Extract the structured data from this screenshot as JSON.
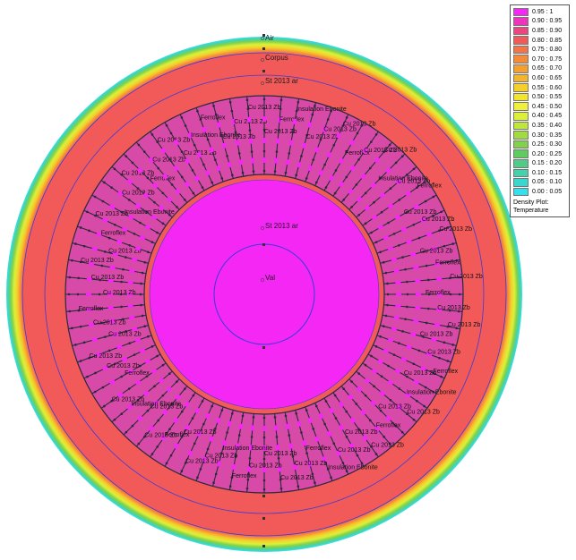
{
  "legend": {
    "ranges": [
      {
        "label": "0.95 : 1",
        "color": "#f527f5"
      },
      {
        "label": "0.90 : 0.95",
        "color": "#f033bf"
      },
      {
        "label": "0.85 : 0.90",
        "color": "#f0447f"
      },
      {
        "label": "0.80 : 0.85",
        "color": "#f25a5a"
      },
      {
        "label": "0.75 : 0.80",
        "color": "#f27448"
      },
      {
        "label": "0.70 : 0.75",
        "color": "#f58a3a"
      },
      {
        "label": "0.65 : 0.70",
        "color": "#f5a02e"
      },
      {
        "label": "0.60 : 0.65",
        "color": "#f5b52a"
      },
      {
        "label": "0.55 : 0.60",
        "color": "#f5cf2a"
      },
      {
        "label": "0.50 : 0.55",
        "color": "#f2e52e"
      },
      {
        "label": "0.45 : 0.50",
        "color": "#f0f038"
      },
      {
        "label": "0.40 : 0.45",
        "color": "#dcf03a"
      },
      {
        "label": "0.35 : 0.40",
        "color": "#bfe63a"
      },
      {
        "label": "0.30 : 0.35",
        "color": "#9fdc3c"
      },
      {
        "label": "0.25 : 0.30",
        "color": "#7fd24a"
      },
      {
        "label": "0.20 : 0.25",
        "color": "#5fcc5f"
      },
      {
        "label": "0.15 : 0.20",
        "color": "#4fcc85"
      },
      {
        "label": "0.10 : 0.15",
        "color": "#44d2ac"
      },
      {
        "label": "0.05 : 0.10",
        "color": "#3ad7cf"
      },
      {
        "label": "0.00 : 0.05",
        "color": "#34e0ee"
      }
    ],
    "caption_line1": "Density Plot:",
    "caption_line2": "Temperature"
  },
  "regions": {
    "air": "Air",
    "corpus": "Corpus",
    "outer_stator": "St 2013 ar",
    "inner_stator": "St 2013 ar",
    "shaft": "Val"
  },
  "slots": {
    "winding_label": "Cu 2013 Zb",
    "steel_label": "Ferroflex",
    "insulation_label": "Insulation Ebonite",
    "count": 72
  },
  "colors": {
    "boundary_line": "#3b3bd6",
    "hot_core": "#f527f5",
    "mid_zone": "#f25a5a",
    "mesh_dark": "#2a2a3a"
  }
}
